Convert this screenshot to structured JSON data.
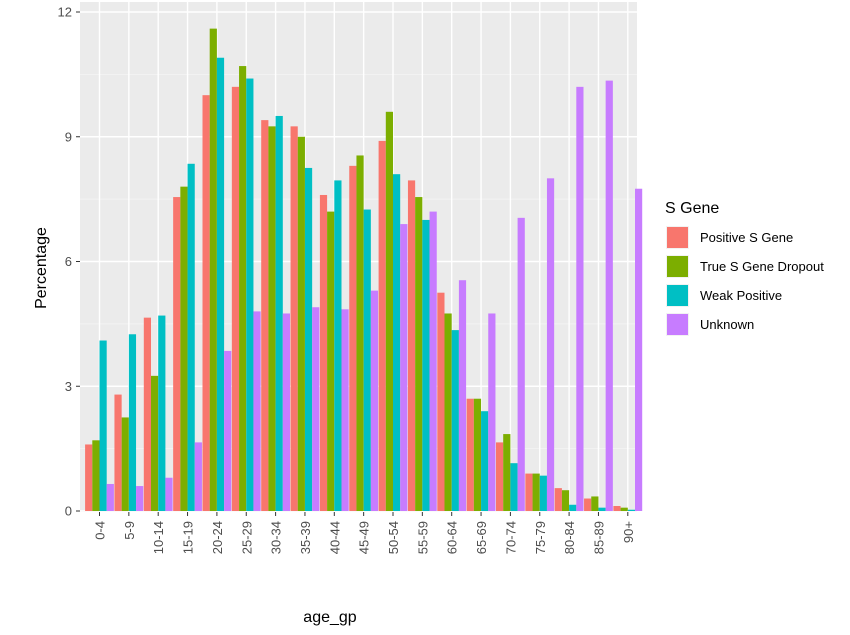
{
  "chart_data": {
    "type": "bar",
    "xlabel": "age_gp",
    "ylabel": "Percentage",
    "ylim": [
      0,
      12.2
    ],
    "yticks": [
      "0",
      "3",
      "6",
      "9",
      "12"
    ],
    "grid": true,
    "legend": {
      "title": "S Gene",
      "position": "right"
    },
    "categories": [
      "0-4",
      "5-9",
      "10-14",
      "15-19",
      "20-24",
      "25-29",
      "30-34",
      "35-39",
      "40-44",
      "45-49",
      "50-54",
      "55-59",
      "60-64",
      "65-69",
      "70-74",
      "75-79",
      "80-84",
      "85-89",
      "90+"
    ],
    "series": [
      {
        "name": "Positive S Gene",
        "color": "#F8766D",
        "values": [
          1.6,
          2.8,
          4.65,
          7.55,
          10.0,
          10.2,
          9.4,
          9.25,
          7.6,
          8.3,
          8.9,
          7.95,
          5.25,
          2.7,
          1.65,
          0.9,
          0.55,
          0.3,
          0.12
        ]
      },
      {
        "name": "True S Gene Dropout",
        "color": "#7CAE00",
        "values": [
          1.7,
          2.25,
          3.25,
          7.8,
          11.6,
          10.7,
          9.25,
          9.0,
          7.2,
          8.55,
          9.6,
          7.55,
          4.75,
          2.7,
          1.85,
          0.9,
          0.5,
          0.35,
          0.08
        ]
      },
      {
        "name": "Weak Positive",
        "color": "#00BFC4",
        "values": [
          4.1,
          4.25,
          4.7,
          8.35,
          10.9,
          10.4,
          9.5,
          8.25,
          7.95,
          7.25,
          8.1,
          7.0,
          4.35,
          2.4,
          1.15,
          0.85,
          0.15,
          0.08,
          0.03
        ]
      },
      {
        "name": "Unknown",
        "color": "#C77CFF",
        "values": [
          0.65,
          0.6,
          0.8,
          1.65,
          3.85,
          4.8,
          4.75,
          4.9,
          4.85,
          5.3,
          6.9,
          7.2,
          5.55,
          4.75,
          7.05,
          8.0,
          10.2,
          10.35,
          7.75
        ]
      }
    ]
  }
}
